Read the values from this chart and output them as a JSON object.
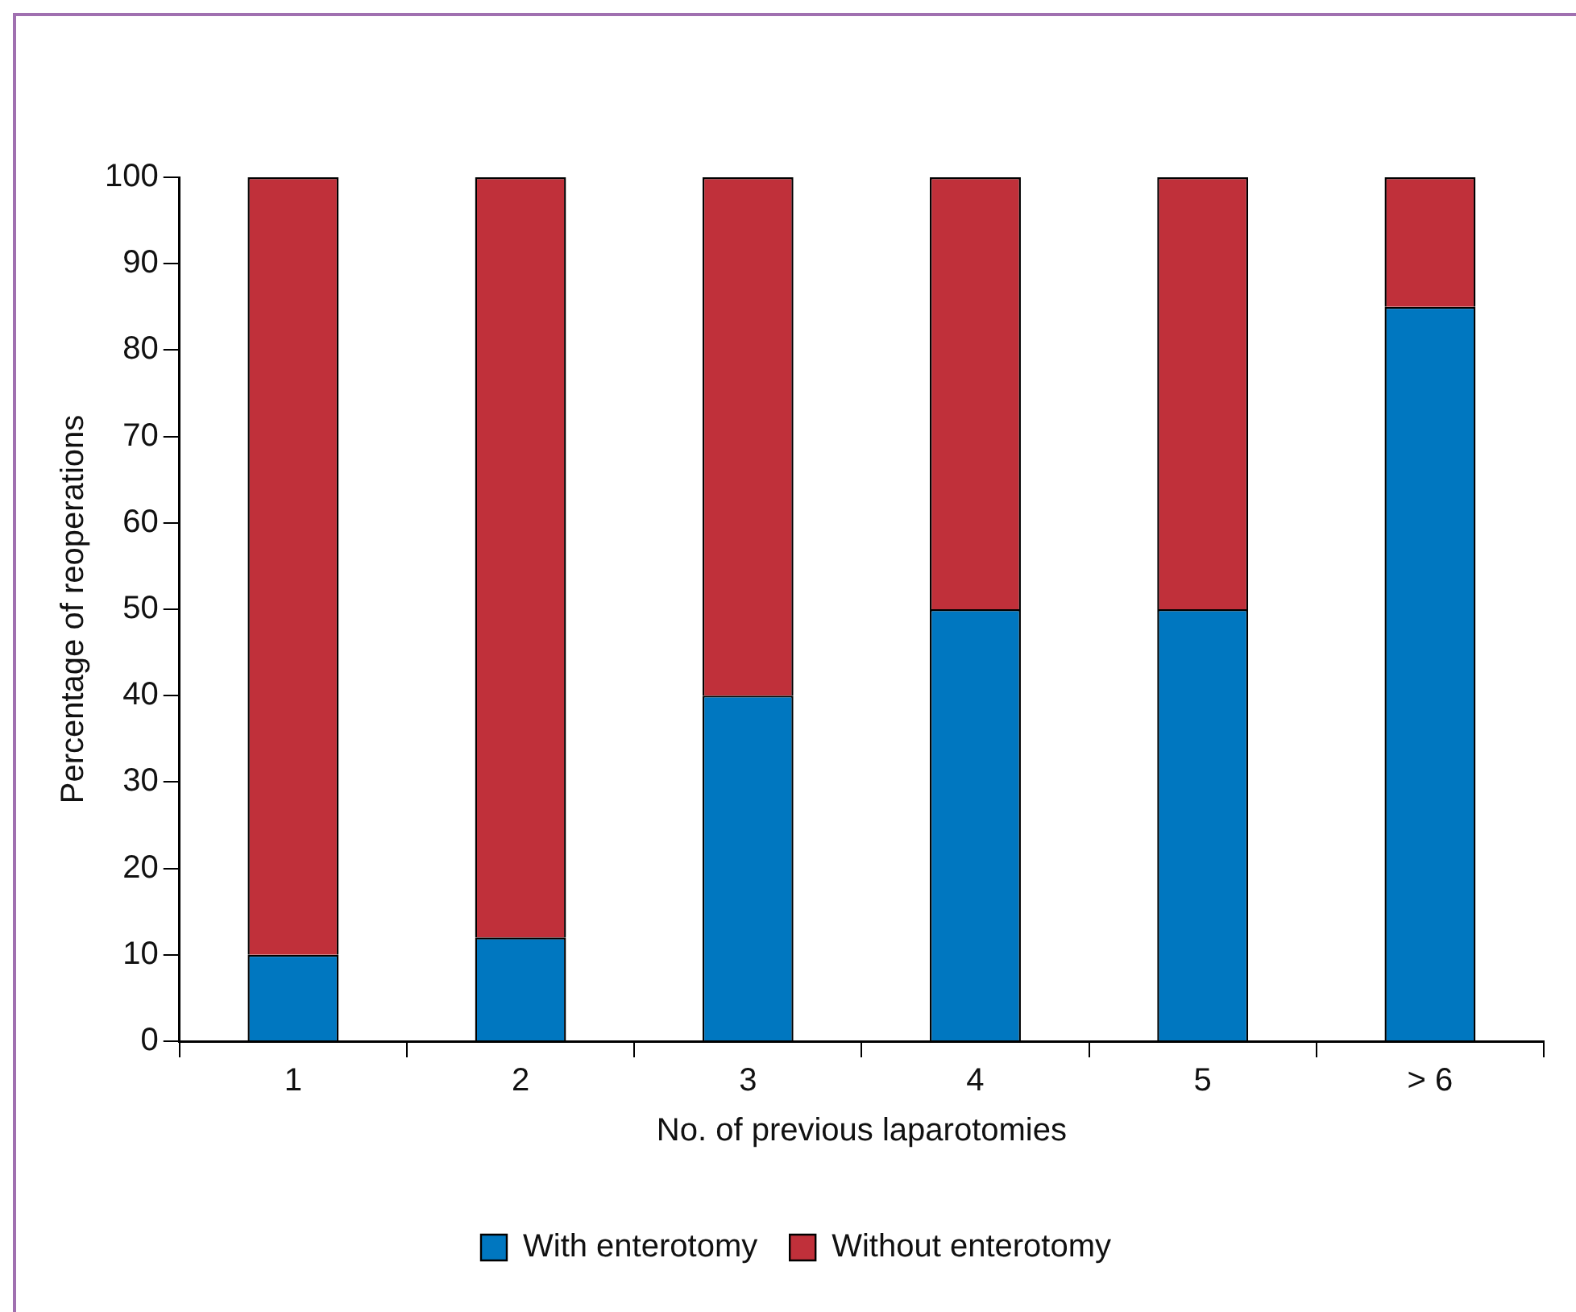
{
  "chart_data": {
    "type": "bar",
    "stacked": true,
    "xlabel": "No. of previous laparotomies",
    "ylabel": "Percentage of reoperations",
    "categories": [
      "1",
      "2",
      "3",
      "4",
      "5",
      "> 6"
    ],
    "series": [
      {
        "name": "With enterotomy",
        "color": "#0077c0",
        "values": [
          10,
          12,
          40,
          50,
          50,
          85
        ]
      },
      {
        "name": "Without enterotomy",
        "color": "#c0303a",
        "values": [
          90,
          88,
          60,
          50,
          50,
          15
        ]
      }
    ],
    "ylim": [
      0,
      100
    ],
    "yticks": [
      0,
      10,
      20,
      30,
      40,
      50,
      60,
      70,
      80,
      90,
      100
    ],
    "grid": false,
    "legend": "bottom"
  }
}
